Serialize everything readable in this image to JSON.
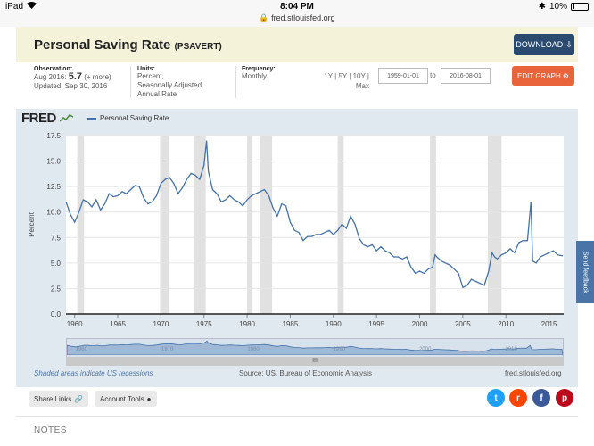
{
  "status_bar": {
    "device": "iPad",
    "time": "8:04 PM",
    "url": "fred.stlouisfed.org",
    "battery": "10%"
  },
  "header": {
    "title": "Personal Saving Rate",
    "code": "(PSAVERT)",
    "download_label": "DOWNLOAD"
  },
  "meta": {
    "observation_label": "Observation:",
    "observation_date": "Aug 2016:",
    "observation_value": "5.7",
    "observation_more": "(+ more)",
    "updated": "Updated: Sep 30, 2016",
    "units_label": "Units:",
    "units_value": "Percent,",
    "units_value2": "Seasonally Adjusted",
    "units_value3": "Annual Rate",
    "frequency_label": "Frequency:",
    "frequency_value": "Monthly",
    "range_links": "1Y | 5Y | 10Y |",
    "range_max": "Max",
    "date_from": "1959-01-01",
    "to_label": "to",
    "date_to": "2016-08-01",
    "edit_label": "EDIT GRAPH"
  },
  "chart": {
    "logo": "FRED",
    "legend_label": "Personal Saving Rate",
    "shaded_note": "Shaded areas indicate US recessions",
    "source": "Source: US. Bureau of Economic Analysis",
    "site": "fred.stlouisfed.org",
    "slider_handle": "III",
    "navigator_labels": [
      "1960",
      "1970",
      "1980",
      "1990",
      "2000",
      "2010"
    ]
  },
  "chart_data": {
    "type": "line",
    "ylabel": "Percent",
    "ylim": [
      0,
      17.5
    ],
    "yticks": [
      "0.0",
      "2.5",
      "5.0",
      "7.5",
      "10.0",
      "12.5",
      "15.0",
      "17.5"
    ],
    "xticks": [
      "1960",
      "1965",
      "1970",
      "1975",
      "1980",
      "1985",
      "1990",
      "1995",
      "2000",
      "2005",
      "2010",
      "2015"
    ],
    "xlim": [
      1959,
      2016.7
    ],
    "recessions": [
      [
        1960.3,
        1961.1
      ],
      [
        1969.9,
        1970.9
      ],
      [
        1973.9,
        1975.2
      ],
      [
        1980.0,
        1980.5
      ],
      [
        1981.5,
        1982.9
      ],
      [
        1990.5,
        1991.2
      ],
      [
        2001.2,
        2001.9
      ],
      [
        2007.9,
        2009.5
      ]
    ],
    "series": [
      {
        "name": "Personal Saving Rate",
        "color": "#4572a7",
        "x": [
          1959.0,
          1959.5,
          1960.0,
          1960.5,
          1961.0,
          1961.5,
          1962.0,
          1962.5,
          1963.0,
          1963.5,
          1964.0,
          1964.5,
          1965.0,
          1965.5,
          1966.0,
          1966.5,
          1967.0,
          1967.5,
          1968.0,
          1968.5,
          1969.0,
          1969.5,
          1970.0,
          1970.5,
          1971.0,
          1971.5,
          1972.0,
          1972.5,
          1973.0,
          1973.5,
          1974.0,
          1974.5,
          1975.0,
          1975.3,
          1975.5,
          1976.0,
          1976.5,
          1977.0,
          1977.5,
          1978.0,
          1978.5,
          1979.0,
          1979.5,
          1980.0,
          1980.5,
          1981.0,
          1981.5,
          1982.0,
          1982.5,
          1983.0,
          1983.5,
          1984.0,
          1984.5,
          1985.0,
          1985.5,
          1986.0,
          1986.5,
          1987.0,
          1987.5,
          1988.0,
          1988.5,
          1989.0,
          1989.5,
          1990.0,
          1990.5,
          1991.0,
          1991.5,
          1992.0,
          1992.5,
          1993.0,
          1993.5,
          1994.0,
          1994.5,
          1995.0,
          1995.5,
          1996.0,
          1996.5,
          1997.0,
          1997.5,
          1998.0,
          1998.5,
          1999.0,
          1999.5,
          2000.0,
          2000.5,
          2001.0,
          2001.5,
          2001.8,
          2002.0,
          2002.5,
          2003.0,
          2003.5,
          2004.0,
          2004.5,
          2005.0,
          2005.5,
          2006.0,
          2006.5,
          2007.0,
          2007.5,
          2008.0,
          2008.4,
          2008.7,
          2009.0,
          2009.5,
          2010.0,
          2010.5,
          2011.0,
          2011.5,
          2012.0,
          2012.5,
          2012.9,
          2013.1,
          2013.5,
          2014.0,
          2014.5,
          2015.0,
          2015.5,
          2016.0,
          2016.6
        ],
        "values": [
          11.0,
          9.8,
          9.0,
          10.0,
          11.2,
          11.0,
          10.5,
          11.2,
          10.2,
          10.8,
          11.8,
          11.5,
          11.6,
          12.0,
          11.8,
          12.2,
          12.6,
          12.5,
          11.4,
          10.8,
          11.0,
          11.6,
          12.8,
          13.2,
          13.4,
          12.8,
          11.8,
          12.4,
          13.2,
          13.8,
          13.6,
          13.2,
          14.6,
          17.0,
          14.0,
          12.2,
          11.8,
          11.0,
          11.2,
          11.6,
          11.2,
          11.0,
          10.6,
          11.2,
          11.6,
          11.8,
          12.0,
          12.2,
          11.6,
          10.4,
          9.6,
          10.8,
          10.6,
          9.0,
          8.2,
          8.0,
          7.2,
          7.6,
          7.6,
          7.8,
          7.8,
          8.0,
          8.2,
          7.8,
          8.2,
          8.8,
          8.4,
          9.6,
          8.8,
          7.4,
          6.8,
          6.6,
          6.8,
          6.2,
          6.6,
          6.2,
          6.0,
          5.6,
          5.6,
          5.4,
          5.6,
          4.6,
          4.0,
          4.2,
          4.0,
          4.4,
          4.6,
          5.8,
          5.6,
          5.2,
          5.0,
          4.8,
          4.4,
          4.0,
          2.6,
          2.8,
          3.4,
          3.2,
          3.0,
          2.8,
          4.2,
          6.0,
          5.6,
          5.4,
          5.8,
          6.0,
          6.4,
          6.0,
          7.0,
          7.2,
          7.2,
          11.0,
          5.2,
          5.0,
          5.6,
          5.8,
          6.0,
          6.2,
          5.8,
          5.7
        ]
      }
    ]
  },
  "actions": {
    "share_label": "Share Links",
    "account_label": "Account Tools"
  },
  "social": {
    "twitter_color": "#1da1f2",
    "reddit_color": "#ff4500",
    "facebook_color": "#3b5998",
    "pinterest_color": "#bd081c"
  },
  "notes": {
    "label": "NOTES"
  },
  "feedback": {
    "label": "Send feedback"
  }
}
